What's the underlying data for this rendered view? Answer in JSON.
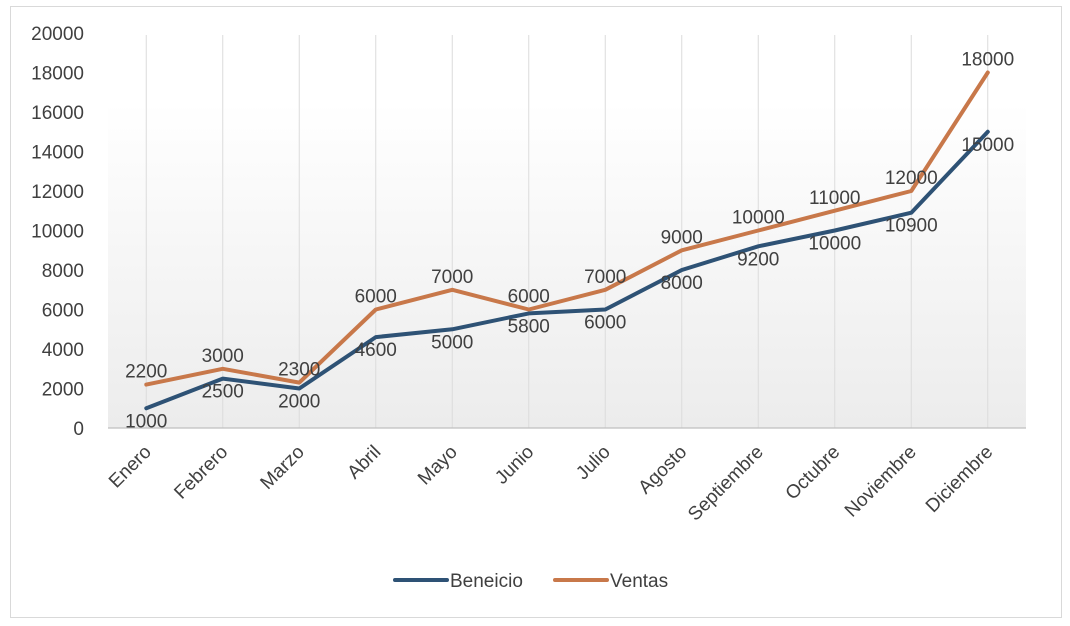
{
  "chart_data": {
    "type": "line",
    "title": "",
    "xlabel": "",
    "ylabel": "",
    "categories": [
      "Enero",
      "Febrero",
      "Marzo",
      "Abril",
      "Mayo",
      "Junio",
      "Julio",
      "Agosto",
      "Septiembre",
      "Octubre",
      "Noviembre",
      "Diciembre"
    ],
    "series": [
      {
        "name": "Beneicio",
        "color": "#2e5275",
        "values": [
          1000,
          2500,
          2000,
          4600,
          5000,
          5800,
          6000,
          8000,
          9200,
          10000,
          10900,
          15000
        ],
        "labels": [
          "1000",
          "2500",
          "2000",
          "4600",
          "5000",
          "5800",
          "6000",
          "8000",
          "9200",
          "10000",
          "10900",
          "15000"
        ]
      },
      {
        "name": "Ventas",
        "color": "#c8784a",
        "values": [
          2200,
          3000,
          2300,
          6000,
          7000,
          6000,
          7000,
          9000,
          10000,
          11000,
          12000,
          18000
        ],
        "labels": [
          "2200",
          "3000",
          "2300",
          "6000",
          "7000",
          "6000",
          "7000",
          "9000",
          "10000",
          "11000",
          "12000",
          "18000"
        ]
      }
    ],
    "ylim": [
      0,
      20000
    ],
    "yticks": [
      0,
      2000,
      4000,
      6000,
      8000,
      10000,
      12000,
      14000,
      16000,
      18000,
      20000
    ],
    "ytick_labels": [
      "0",
      "2000",
      "4000",
      "6000",
      "8000",
      "10000",
      "12000",
      "14000",
      "16000",
      "18000",
      "20000"
    ],
    "grid": "vertical",
    "legend_position": "bottom"
  }
}
